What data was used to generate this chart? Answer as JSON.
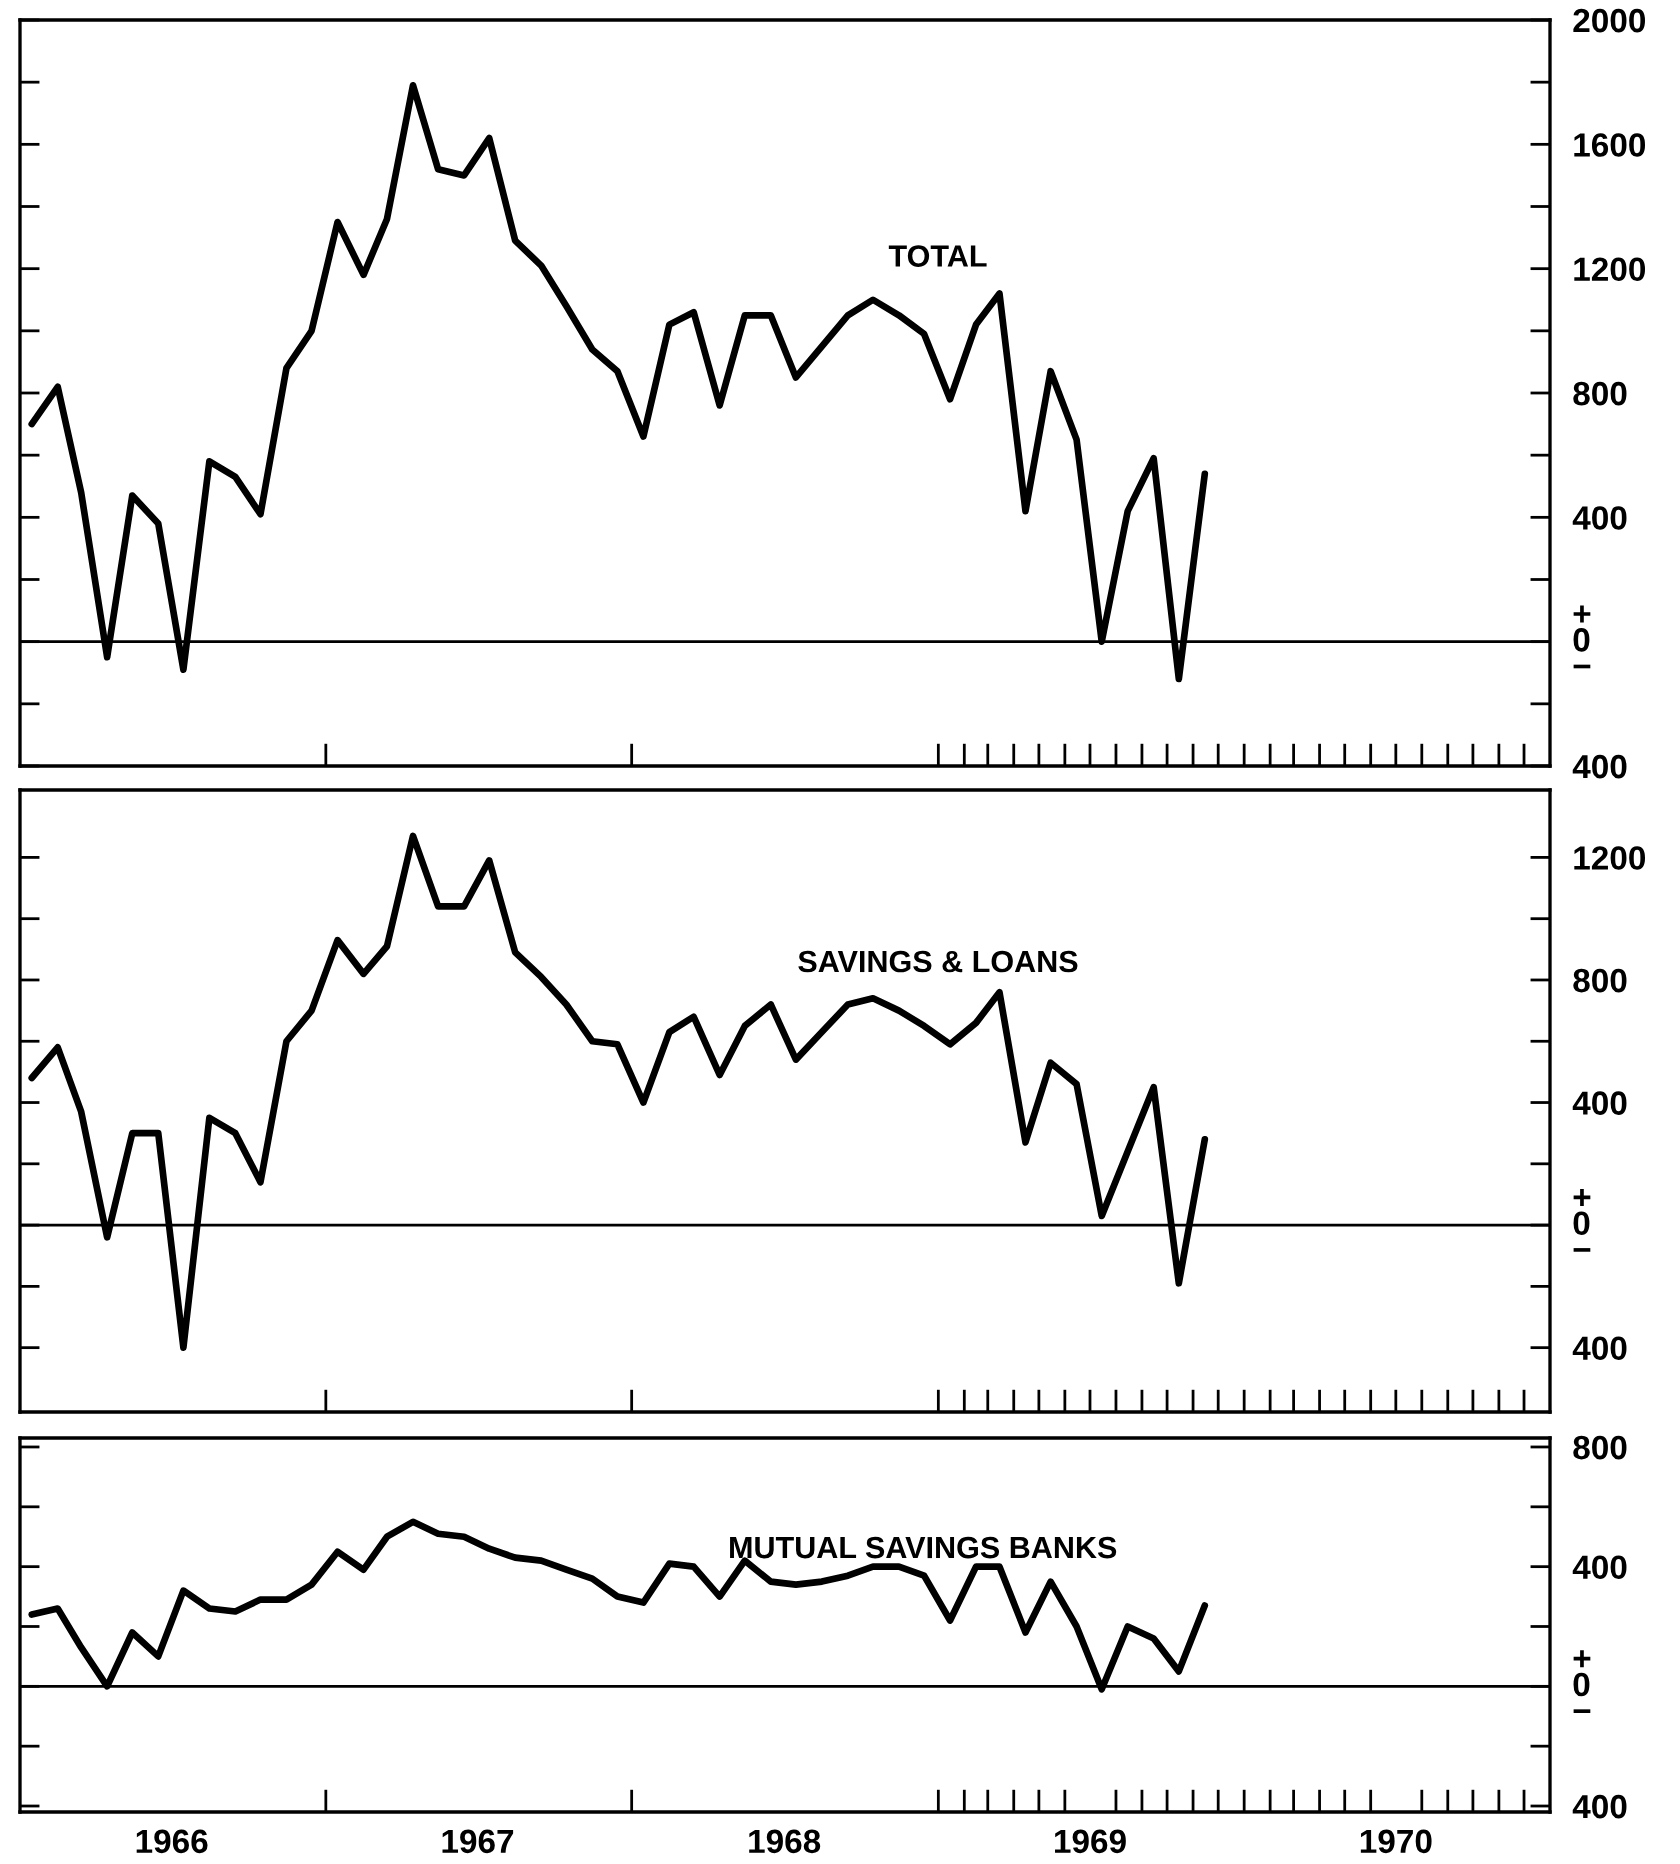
{
  "chart_data": [
    {
      "type": "line",
      "x": [
        "1966-01-15",
        "1966-02-15",
        "1966-03-15",
        "1966-04-15",
        "1966-05-15",
        "1966-06-15",
        "1966-07-15",
        "1966-08-15",
        "1966-09-15",
        "1966-10-15",
        "1966-11-15",
        "1966-12-15",
        "1967-01-15",
        "1967-02-15",
        "1967-03-15",
        "1967-04-15",
        "1967-05-15",
        "1967-06-15",
        "1967-07-15",
        "1967-08-15",
        "1967-09-15",
        "1967-10-15",
        "1967-11-15",
        "1967-12-15",
        "1968-01-15",
        "1968-02-15",
        "1968-03-15",
        "1968-04-15",
        "1968-05-15",
        "1968-06-15",
        "1968-07-15",
        "1968-08-15",
        "1968-09-15",
        "1968-10-15",
        "1968-11-15",
        "1968-12-15",
        "1969-01-15",
        "1969-02-15",
        "1969-03-15",
        "1969-04-15",
        "1969-05-15",
        "1969-06-15",
        "1969-07-15",
        "1969-08-15",
        "1969-09-15",
        "1969-10-15",
        "1969-11-15"
      ],
      "series": [
        {
          "name": "TOTAL",
          "color": "#000000",
          "values": [
            700,
            820,
            480,
            -50,
            470,
            380,
            -90,
            580,
            530,
            410,
            880,
            1000,
            1350,
            1180,
            1360,
            1790,
            1520,
            1500,
            1620,
            1290,
            1210,
            1080,
            940,
            870,
            660,
            1020,
            1060,
            760,
            1050,
            1050,
            850,
            950,
            1050,
            1100,
            1050,
            990,
            780,
            1020,
            1120,
            420,
            870,
            650,
            0,
            420,
            590,
            -120,
            540
          ]
        }
      ],
      "xlim": [
        "1966-01-01",
        "1971-01-01"
      ],
      "xticks": [
        {
          "value": "1967-01-01",
          "label": null
        },
        {
          "value": "1968-01-01",
          "label": null
        },
        {
          "value": "1969-01-01",
          "label": null
        },
        {
          "value": "1969-02-01",
          "label": null
        },
        {
          "value": "1969-03-01",
          "label": null
        },
        {
          "value": "1969-04-01",
          "label": null
        },
        {
          "value": "1969-05-01",
          "label": null
        },
        {
          "value": "1969-06-01",
          "label": null
        },
        {
          "value": "1969-07-01",
          "label": null
        },
        {
          "value": "1969-08-01",
          "label": null
        },
        {
          "value": "1969-09-01",
          "label": null
        },
        {
          "value": "1969-10-01",
          "label": null
        },
        {
          "value": "1969-11-01",
          "label": null
        },
        {
          "value": "1969-12-01",
          "label": null
        },
        {
          "value": "1970-01-01",
          "label": null
        },
        {
          "value": "1970-02-01",
          "label": null
        },
        {
          "value": "1970-03-01",
          "label": null
        },
        {
          "value": "1970-04-01",
          "label": null
        },
        {
          "value": "1970-05-01",
          "label": null
        },
        {
          "value": "1970-06-01",
          "label": null
        },
        {
          "value": "1970-07-01",
          "label": null
        },
        {
          "value": "1970-08-01",
          "label": null
        },
        {
          "value": "1970-09-01",
          "label": null
        },
        {
          "value": "1970-10-01",
          "label": null
        },
        {
          "value": "1970-11-01",
          "label": null
        },
        {
          "value": "1970-12-01",
          "label": null
        }
      ],
      "ylim": [
        -400,
        2000
      ],
      "yticks": [
        {
          "value": -400,
          "label": "400"
        },
        {
          "value": -200,
          "label": null
        },
        {
          "value": 0,
          "label": "+\n0\n−"
        },
        {
          "value": 200,
          "label": null
        },
        400,
        {
          "value": 600,
          "label": null
        },
        800,
        {
          "value": 1000,
          "label": null
        },
        1200,
        {
          "value": 1400,
          "label": null
        },
        1600,
        {
          "value": 1800,
          "label": null
        },
        2000
      ],
      "ref_lines": [
        {
          "axis": "y",
          "value": 0,
          "color": "#000000"
        }
      ],
      "tick_labels": "y",
      "grid": false,
      "legend": false
    },
    {
      "type": "line",
      "x": [
        "1966-01-15",
        "1966-02-15",
        "1966-03-15",
        "1966-04-15",
        "1966-05-15",
        "1966-06-15",
        "1966-07-15",
        "1966-08-15",
        "1966-09-15",
        "1966-10-15",
        "1966-11-15",
        "1966-12-15",
        "1967-01-15",
        "1967-02-15",
        "1967-03-15",
        "1967-04-15",
        "1967-05-15",
        "1967-06-15",
        "1967-07-15",
        "1967-08-15",
        "1967-09-15",
        "1967-10-15",
        "1967-11-15",
        "1967-12-15",
        "1968-01-15",
        "1968-02-15",
        "1968-03-15",
        "1968-04-15",
        "1968-05-15",
        "1968-06-15",
        "1968-07-15",
        "1968-08-15",
        "1968-09-15",
        "1968-10-15",
        "1968-11-15",
        "1968-12-15",
        "1969-01-15",
        "1969-02-15",
        "1969-03-15",
        "1969-04-15",
        "1969-05-15",
        "1969-06-15",
        "1969-07-15",
        "1969-08-15",
        "1969-09-15",
        "1969-10-15",
        "1969-11-15"
      ],
      "series": [
        {
          "name": "SAVINGS & LOANS",
          "color": "#000000",
          "values": [
            480,
            580,
            370,
            -40,
            300,
            300,
            -400,
            350,
            300,
            140,
            600,
            700,
            930,
            820,
            910,
            1270,
            1040,
            1040,
            1190,
            890,
            810,
            720,
            600,
            590,
            400,
            630,
            680,
            490,
            650,
            720,
            540,
            630,
            720,
            740,
            700,
            650,
            590,
            660,
            760,
            270,
            530,
            460,
            30,
            240,
            450,
            -190,
            280
          ]
        }
      ],
      "xlim": [
        "1966-01-01",
        "1971-01-01"
      ],
      "xticks": [
        {
          "value": "1967-01-01",
          "label": null
        },
        {
          "value": "1968-01-01",
          "label": null
        },
        {
          "value": "1969-01-01",
          "label": null
        },
        {
          "value": "1969-02-01",
          "label": null
        },
        {
          "value": "1969-03-01",
          "label": null
        },
        {
          "value": "1969-04-01",
          "label": null
        },
        {
          "value": "1969-05-01",
          "label": null
        },
        {
          "value": "1969-06-01",
          "label": null
        },
        {
          "value": "1969-07-01",
          "label": null
        },
        {
          "value": "1969-08-01",
          "label": null
        },
        {
          "value": "1969-09-01",
          "label": null
        },
        {
          "value": "1969-10-01",
          "label": null
        },
        {
          "value": "1969-11-01",
          "label": null
        },
        {
          "value": "1969-12-01",
          "label": null
        },
        {
          "value": "1970-01-01",
          "label": null
        },
        {
          "value": "1970-02-01",
          "label": null
        },
        {
          "value": "1970-03-01",
          "label": null
        },
        {
          "value": "1970-04-01",
          "label": null
        },
        {
          "value": "1970-05-01",
          "label": null
        },
        {
          "value": "1970-06-01",
          "label": null
        },
        {
          "value": "1970-07-01",
          "label": null
        },
        {
          "value": "1970-08-01",
          "label": null
        },
        {
          "value": "1970-09-01",
          "label": null
        },
        {
          "value": "1970-10-01",
          "label": null
        },
        {
          "value": "1970-11-01",
          "label": null
        },
        {
          "value": "1970-12-01",
          "label": null
        }
      ],
      "ylim": [
        -610,
        1420
      ],
      "yticks": [
        {
          "value": -400,
          "label": "400"
        },
        {
          "value": -200,
          "label": null
        },
        {
          "value": 0,
          "label": "+\n0\n−"
        },
        {
          "value": 200,
          "label": null
        },
        400,
        {
          "value": 600,
          "label": null
        },
        800,
        {
          "value": 1000,
          "label": null
        },
        1200
      ],
      "ref_lines": [
        {
          "axis": "y",
          "value": 0,
          "color": "#000000"
        }
      ],
      "tick_labels": "y",
      "grid": false,
      "legend": false
    },
    {
      "type": "line",
      "x": [
        "1966-01-15",
        "1966-02-15",
        "1966-03-15",
        "1966-04-15",
        "1966-05-15",
        "1966-06-15",
        "1966-07-15",
        "1966-08-15",
        "1966-09-15",
        "1966-10-15",
        "1966-11-15",
        "1966-12-15",
        "1967-01-15",
        "1967-02-15",
        "1967-03-15",
        "1967-04-15",
        "1967-05-15",
        "1967-06-15",
        "1967-07-15",
        "1967-08-15",
        "1967-09-15",
        "1967-10-15",
        "1967-11-15",
        "1967-12-15",
        "1968-01-15",
        "1968-02-15",
        "1968-03-15",
        "1968-04-15",
        "1968-05-15",
        "1968-06-15",
        "1968-07-15",
        "1968-08-15",
        "1968-09-15",
        "1968-10-15",
        "1968-11-15",
        "1968-12-15",
        "1969-01-15",
        "1969-02-15",
        "1969-03-15",
        "1969-04-15",
        "1969-05-15",
        "1969-06-15",
        "1969-07-15",
        "1969-08-15",
        "1969-09-15",
        "1969-10-15",
        "1969-11-15"
      ],
      "series": [
        {
          "name": "MUTUAL SAVINGS BANKS",
          "color": "#000000",
          "values": [
            240,
            260,
            130,
            0,
            180,
            100,
            320,
            260,
            250,
            290,
            290,
            340,
            450,
            390,
            500,
            550,
            510,
            500,
            460,
            430,
            420,
            390,
            360,
            300,
            280,
            410,
            400,
            300,
            420,
            350,
            340,
            350,
            370,
            400,
            400,
            370,
            220,
            400,
            400,
            180,
            350,
            200,
            -10,
            200,
            160,
            50,
            270
          ]
        }
      ],
      "xlim": [
        "1966-01-01",
        "1971-01-01"
      ],
      "xticks": [
        {
          "value": "1966-07-01",
          "label": "1966"
        },
        {
          "value": "1967-01-01",
          "label": null
        },
        {
          "value": "1967-07-01",
          "label": "1967"
        },
        {
          "value": "1968-01-01",
          "label": null
        },
        {
          "value": "1968-07-01",
          "label": "1968"
        },
        {
          "value": "1969-01-01",
          "label": null
        },
        {
          "value": "1969-02-01",
          "label": null
        },
        {
          "value": "1969-03-01",
          "label": null
        },
        {
          "value": "1969-04-01",
          "label": null
        },
        {
          "value": "1969-05-01",
          "label": null
        },
        {
          "value": "1969-06-01",
          "label": null
        },
        {
          "value": "1969-07-01",
          "label": "1969"
        },
        {
          "value": "1969-08-01",
          "label": null
        },
        {
          "value": "1969-09-01",
          "label": null
        },
        {
          "value": "1969-10-01",
          "label": null
        },
        {
          "value": "1969-11-01",
          "label": null
        },
        {
          "value": "1969-12-01",
          "label": null
        },
        {
          "value": "1970-01-01",
          "label": null
        },
        {
          "value": "1970-02-01",
          "label": null
        },
        {
          "value": "1970-03-01",
          "label": null
        },
        {
          "value": "1970-04-01",
          "label": null
        },
        {
          "value": "1970-05-01",
          "label": null
        },
        {
          "value": "1970-06-01",
          "label": null
        },
        {
          "value": "1970-07-01",
          "label": "1970"
        },
        {
          "value": "1970-08-01",
          "label": null
        },
        {
          "value": "1970-09-01",
          "label": null
        },
        {
          "value": "1970-10-01",
          "label": null
        },
        {
          "value": "1970-11-01",
          "label": null
        },
        {
          "value": "1970-12-01",
          "label": null
        }
      ],
      "ylim": [
        -420,
        830
      ],
      "yticks": [
        {
          "value": -400,
          "label": "400"
        },
        {
          "value": -200,
          "label": null
        },
        {
          "value": 0,
          "label": "+\n0\n−"
        },
        {
          "value": 200,
          "label": null
        },
        400,
        {
          "value": 600,
          "label": null
        },
        800
      ],
      "ref_lines": [
        {
          "axis": "y",
          "value": 0,
          "color": "#000000"
        }
      ],
      "grid": false,
      "legend": false
    }
  ]
}
